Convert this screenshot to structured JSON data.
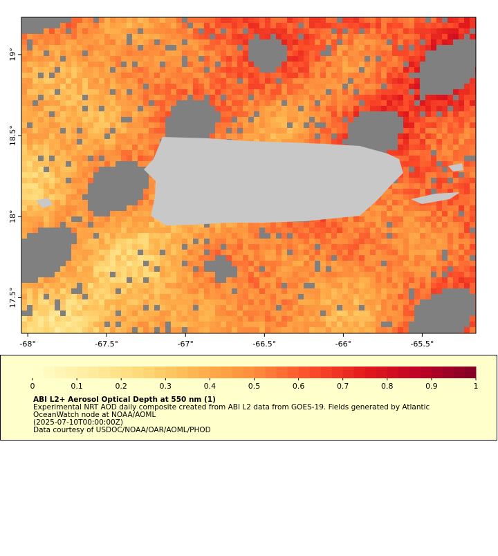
{
  "map": {
    "xlim": [
      -68.04,
      -65.16
    ],
    "ylim": [
      17.28,
      19.23
    ],
    "xticks": [
      {
        "value": -68,
        "label": "-68°"
      },
      {
        "value": -67.5,
        "label": "-67.5°"
      },
      {
        "value": -67,
        "label": "-67°"
      },
      {
        "value": -66.5,
        "label": "-66.5°"
      },
      {
        "value": -66,
        "label": "-66°"
      },
      {
        "value": -65.5,
        "label": "-65.5°"
      }
    ],
    "yticks": [
      {
        "value": 17.5,
        "label": "17.5°"
      },
      {
        "value": 18,
        "label": "18°"
      },
      {
        "value": 18.5,
        "label": "18.5°"
      },
      {
        "value": 19,
        "label": "19°"
      }
    ]
  },
  "colorbar": {
    "lim": [
      0,
      1
    ],
    "ticks": [
      0,
      0.1,
      0.2,
      0.3,
      0.4,
      0.5,
      0.6,
      0.7,
      0.8,
      0.9,
      1
    ],
    "colors": [
      "#ffffcc",
      "#ffeda0",
      "#fed976",
      "#feb24c",
      "#fd8d3c",
      "#fc4e2a",
      "#e31a1c",
      "#bd0026",
      "#800026"
    ],
    "missing_color": "#808080",
    "land_color": "#c8c8c8"
  },
  "caption": {
    "title": "ABI L2+ Aerosol Optical Depth at 550 nm (1)",
    "lines": [
      "Experimental NRT AOD daily composite created from ABI L2 data from GOES-19. Fields generated by Atlantic",
      "OceanWatch node at NOAA/AOML",
      "(2025-07-10T00:00:00Z)",
      "Data courtesy of USDOC/NOAA/OAR/AOML/PHOD"
    ]
  }
}
